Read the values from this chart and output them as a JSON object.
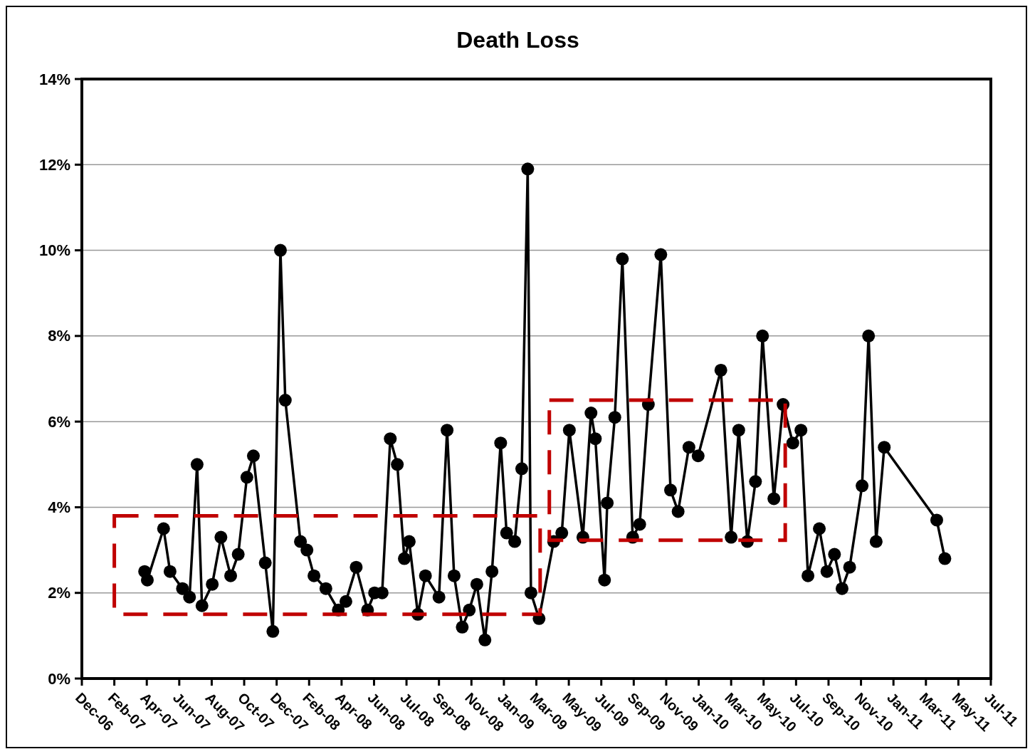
{
  "chart_data": {
    "type": "line",
    "title": "Death Loss",
    "x": [
      "2007-04-04",
      "2007-04-09",
      "2007-05-09",
      "2007-05-21",
      "2007-06-13",
      "2007-06-26",
      "2007-07-10",
      "2007-07-19",
      "2007-08-07",
      "2007-08-23",
      "2007-09-10",
      "2007-09-24",
      "2007-10-10",
      "2007-10-22",
      "2007-11-13",
      "2007-11-27",
      "2007-12-11",
      "2007-12-20",
      "2008-01-17",
      "2008-01-29",
      "2008-02-11",
      "2008-03-04",
      "2008-03-27",
      "2008-04-10",
      "2008-04-29",
      "2008-05-20",
      "2008-06-02",
      "2008-06-16",
      "2008-07-01",
      "2008-07-14",
      "2008-07-27",
      "2008-08-05",
      "2008-08-21",
      "2008-09-04",
      "2008-09-29",
      "2008-10-14",
      "2008-10-27",
      "2008-11-11",
      "2008-11-24",
      "2008-12-08",
      "2008-12-23",
      "2009-01-05",
      "2009-01-21",
      "2009-02-01",
      "2009-02-16",
      "2009-03-01",
      "2009-03-12",
      "2009-03-18",
      "2009-04-02",
      "2009-04-29",
      "2009-05-14",
      "2009-05-28",
      "2009-06-22",
      "2009-07-07",
      "2009-07-15",
      "2009-08-01",
      "2009-08-06",
      "2009-08-20",
      "2009-09-03",
      "2009-09-22",
      "2009-10-05",
      "2009-10-21",
      "2009-11-13",
      "2009-12-01",
      "2009-12-15",
      "2010-01-04",
      "2010-01-21",
      "2010-03-04",
      "2010-03-23",
      "2010-04-06",
      "2010-04-22",
      "2010-05-07",
      "2010-05-20",
      "2010-06-10",
      "2010-06-27",
      "2010-07-15",
      "2010-07-30",
      "2010-08-12",
      "2010-09-02",
      "2010-09-16",
      "2010-09-30",
      "2010-10-14",
      "2010-10-28",
      "2010-11-20",
      "2010-12-02",
      "2010-12-16",
      "2010-12-31",
      "2011-04-07",
      "2011-04-22"
    ],
    "series": [
      {
        "color": "#000000",
        "values": [
          2.5,
          2.3,
          3.5,
          2.5,
          2.1,
          1.9,
          5.0,
          1.7,
          2.2,
          3.3,
          2.4,
          2.9,
          4.7,
          5.2,
          2.7,
          1.1,
          10.0,
          6.5,
          3.2,
          3.0,
          2.4,
          2.1,
          1.6,
          1.8,
          2.6,
          1.6,
          2.0,
          2.0,
          5.6,
          5.0,
          2.8,
          3.2,
          1.5,
          2.4,
          1.9,
          5.8,
          2.4,
          1.2,
          1.6,
          2.2,
          0.9,
          2.5,
          5.5,
          3.4,
          3.2,
          4.9,
          11.9,
          2.0,
          1.4,
          3.2,
          3.4,
          5.8,
          3.3,
          6.2,
          5.6,
          2.3,
          4.1,
          6.1,
          9.8,
          3.3,
          3.6,
          6.4,
          9.9,
          4.4,
          3.9,
          5.4,
          5.2,
          7.2,
          3.3,
          5.8,
          3.2,
          4.6,
          8.0,
          4.2,
          6.4,
          5.5,
          5.8,
          2.4,
          3.5,
          2.5,
          2.9,
          2.1,
          2.6,
          4.5,
          8.0,
          3.2,
          5.4,
          3.7,
          2.8
        ]
      }
    ],
    "xlim": [
      "2006-12-09",
      "2011-07-16"
    ],
    "xticks": [
      {
        "value": "2006-12-09",
        "label": "Dec-06"
      },
      {
        "value": "2007-02-07",
        "label": "Feb-07"
      },
      {
        "value": "2007-04-08",
        "label": "Apr-07"
      },
      {
        "value": "2007-06-07",
        "label": "Jun-07"
      },
      {
        "value": "2007-08-06",
        "label": "Aug-07"
      },
      {
        "value": "2007-10-05",
        "label": "Oct-07"
      },
      {
        "value": "2007-12-04",
        "label": "Dec-07"
      },
      {
        "value": "2008-02-02",
        "label": "Feb-08"
      },
      {
        "value": "2008-04-02",
        "label": "Apr-08"
      },
      {
        "value": "2008-06-01",
        "label": "Jun-08"
      },
      {
        "value": "2008-07-31",
        "label": "Jul-08"
      },
      {
        "value": "2008-09-29",
        "label": "Sep-08"
      },
      {
        "value": "2008-11-28",
        "label": "Nov-08"
      },
      {
        "value": "2009-01-27",
        "label": "Jan-09"
      },
      {
        "value": "2009-03-28",
        "label": "Mar-09"
      },
      {
        "value": "2009-05-27",
        "label": "May-09"
      },
      {
        "value": "2009-07-26",
        "label": "Jul-09"
      },
      {
        "value": "2009-09-24",
        "label": "Sep-09"
      },
      {
        "value": "2009-11-23",
        "label": "Nov-09"
      },
      {
        "value": "2010-01-22",
        "label": "Jan-10"
      },
      {
        "value": "2010-03-23",
        "label": "Mar-10"
      },
      {
        "value": "2010-05-22",
        "label": "May-10"
      },
      {
        "value": "2010-07-21",
        "label": "Jul-10"
      },
      {
        "value": "2010-09-19",
        "label": "Sep-10"
      },
      {
        "value": "2010-11-18",
        "label": "Nov-10"
      },
      {
        "value": "2011-01-17",
        "label": "Jan-11"
      },
      {
        "value": "2011-03-18",
        "label": "Mar-11"
      },
      {
        "value": "2011-05-17",
        "label": "May-11"
      },
      {
        "value": "2011-07-16",
        "label": "Jul-11"
      }
    ],
    "ylim": [
      0,
      14
    ],
    "yticks": [
      {
        "value": 0,
        "label": "0%"
      },
      {
        "value": 2,
        "label": "2%"
      },
      {
        "value": 4,
        "label": "4%"
      },
      {
        "value": 6,
        "label": "6%"
      },
      {
        "value": 8,
        "label": "8%"
      },
      {
        "value": 10,
        "label": "10%"
      },
      {
        "value": 12,
        "label": "12%"
      },
      {
        "value": 14,
        "label": "14%"
      }
    ],
    "grid": "y",
    "marker": "circle",
    "line_style": "solid",
    "legend": false
  }
}
